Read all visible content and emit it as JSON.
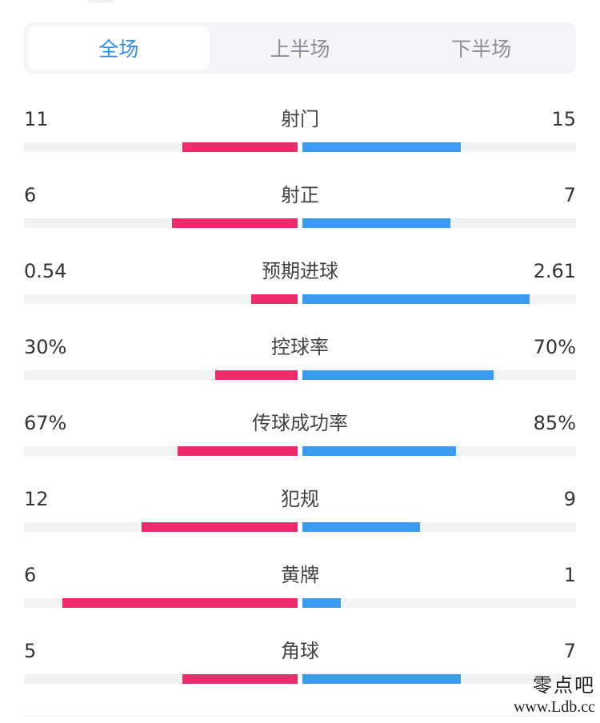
{
  "tabs": [
    {
      "label": "全场",
      "active": true
    },
    {
      "label": "上半场",
      "active": false
    },
    {
      "label": "下半场",
      "active": false
    }
  ],
  "colors": {
    "home": "#ee2b6a",
    "away": "#3b9bf0",
    "active_tab": "#2f8fe8",
    "track": "#f1f2f4"
  },
  "stats": [
    {
      "label": "射门",
      "home": "11",
      "away": "15",
      "home_share": 0.42,
      "away_share": 0.58
    },
    {
      "label": "射正",
      "home": "6",
      "away": "7",
      "home_share": 0.46,
      "away_share": 0.54
    },
    {
      "label": "预期进球",
      "home": "0.54",
      "away": "2.61",
      "home_share": 0.17,
      "away_share": 0.83
    },
    {
      "label": "控球率",
      "home": "30%",
      "away": "70%",
      "home_share": 0.3,
      "away_share": 0.7
    },
    {
      "label": "传球成功率",
      "home": "67%",
      "away": "85%",
      "home_share": 0.44,
      "away_share": 0.56
    },
    {
      "label": "犯规",
      "home": "12",
      "away": "9",
      "home_share": 0.57,
      "away_share": 0.43
    },
    {
      "label": "黄牌",
      "home": "6",
      "away": "1",
      "home_share": 0.86,
      "away_share": 0.14
    },
    {
      "label": "角球",
      "home": "5",
      "away": "7",
      "home_share": 0.42,
      "away_share": 0.58
    }
  ],
  "watermark": {
    "name": "零点吧",
    "url": "www.Ldb.cc"
  }
}
